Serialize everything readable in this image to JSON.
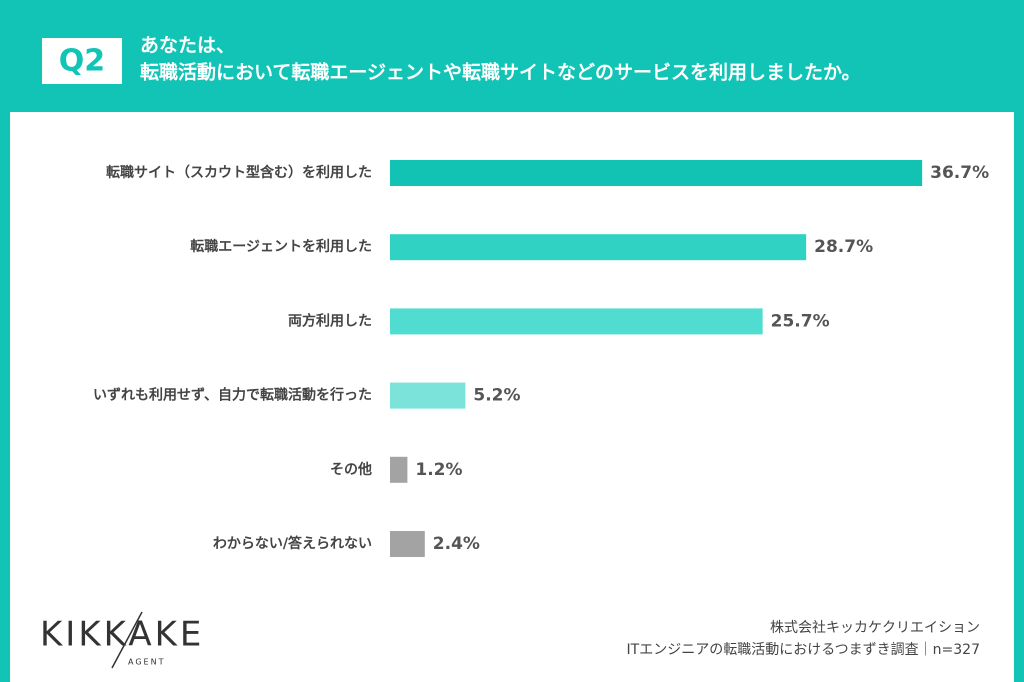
{
  "chart_data": {
    "type": "bar",
    "orientation": "horizontal",
    "question": "Q2",
    "title": [
      "あなたは、",
      "転職活動において転職エージェントや転職サイトなどのサービスを利用しましたか。"
    ],
    "categories": [
      "転職サイト（スカウト型含む）を利用した",
      "転職エージェントを利用した",
      "両方利用した",
      "いずれも利用せず、自力で転職活動を行った",
      "その他",
      "わからない/答えられない"
    ],
    "values": [
      36.7,
      28.7,
      25.7,
      5.2,
      1.2,
      2.4
    ],
    "value_labels": [
      "36.7%",
      "28.7%",
      "25.7%",
      "5.2%",
      "1.2%",
      "2.4%"
    ],
    "colors": [
      "#12c2b3",
      "#30d2c4",
      "#50dcd0",
      "#7ce3db",
      "#a3a3a3",
      "#a3a3a3"
    ],
    "source": [
      "株式会社キッカケクリエイション",
      "ITエンジニアの転職活動におけるつまずき調査｜n=327"
    ],
    "logo": {
      "name": "KIKKAKE",
      "sub": "AGENT"
    }
  }
}
